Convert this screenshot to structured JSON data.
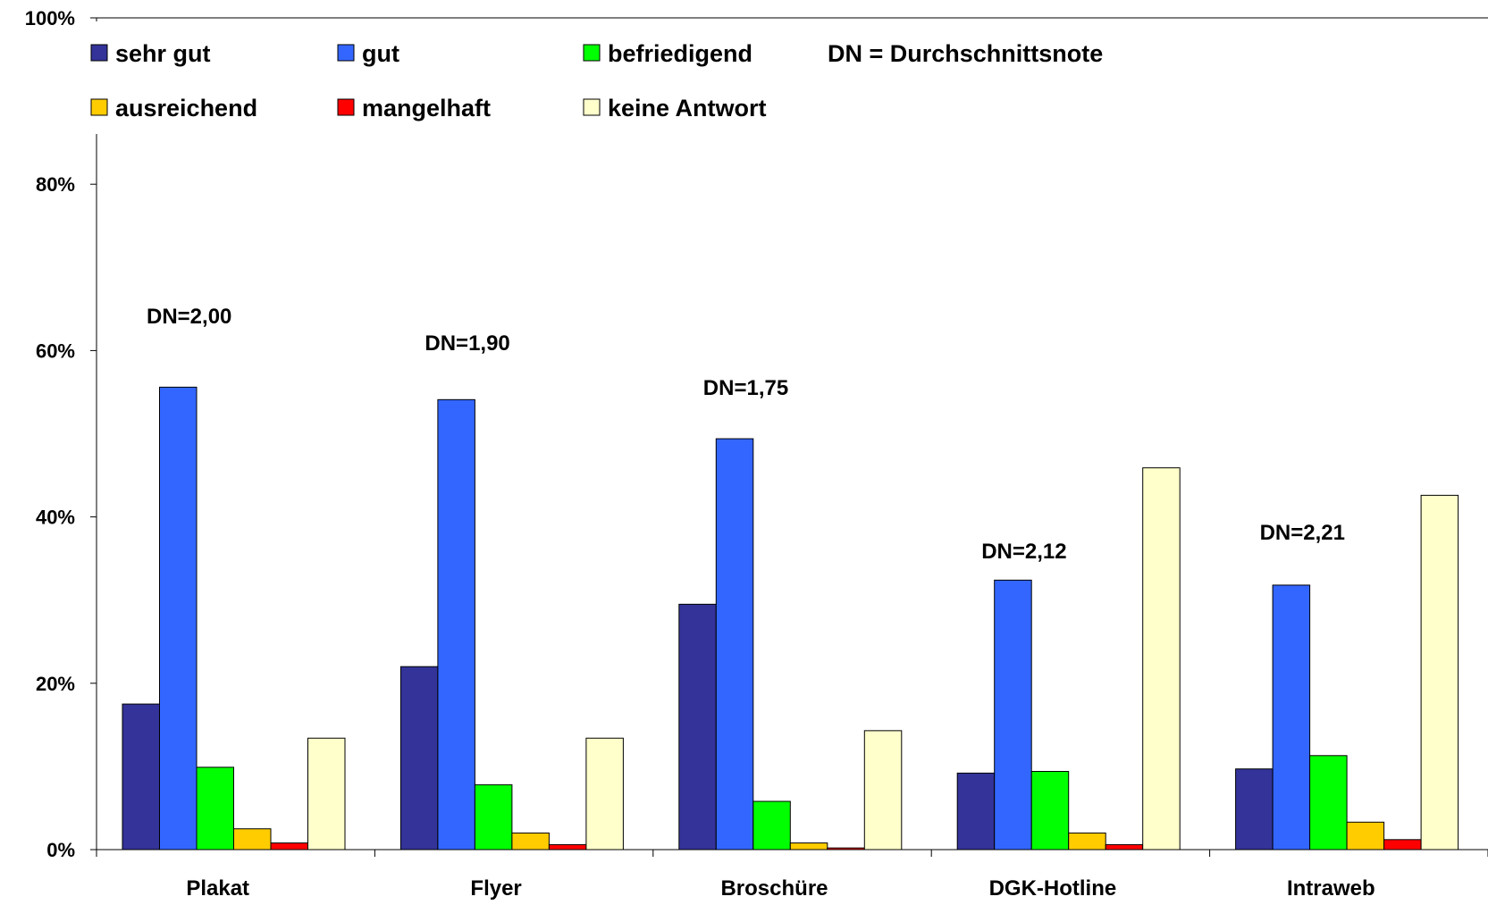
{
  "chart_data": {
    "type": "bar",
    "categories": [
      "Plakat",
      "Flyer",
      "Broschüre",
      "DGK-Hotline",
      "Intraweb"
    ],
    "series": [
      {
        "name": "sehr gut",
        "color": "#333399",
        "values": [
          17.5,
          22.0,
          29.5,
          9.2,
          9.7
        ]
      },
      {
        "name": "gut",
        "color": "#3366ff",
        "values": [
          55.6,
          54.1,
          49.4,
          32.4,
          31.8
        ]
      },
      {
        "name": "befriedigend",
        "color": "#00ff00",
        "values": [
          9.9,
          7.8,
          5.8,
          9.4,
          11.3
        ]
      },
      {
        "name": "ausreichend",
        "color": "#ffcc00",
        "values": [
          2.5,
          2.0,
          0.8,
          2.0,
          3.3
        ]
      },
      {
        "name": "mangelhaft",
        "color": "#ff0000",
        "values": [
          0.8,
          0.6,
          0.2,
          0.6,
          1.2
        ]
      },
      {
        "name": "keine Antwort",
        "color": "#ffffcc",
        "values": [
          13.4,
          13.4,
          14.3,
          45.9,
          42.6
        ]
      }
    ],
    "annotations": [
      "DN=2,00",
      "DN=1,90",
      "DN=1,75",
      "DN=2,12",
      "DN=2,21"
    ],
    "legend_note": "DN = Durchschnittsnote",
    "ylim": [
      0,
      100
    ],
    "ytick_labels": [
      "0%",
      "20%",
      "40%",
      "60%",
      "80%",
      "100%"
    ],
    "ytick_values": [
      0,
      20,
      40,
      60,
      80,
      100
    ],
    "grid": false,
    "legend_placement": "top-left"
  }
}
